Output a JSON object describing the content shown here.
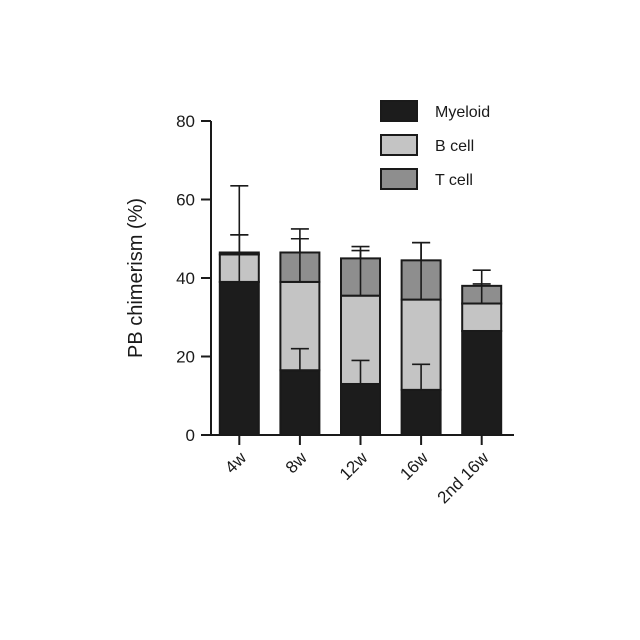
{
  "chart_data": {
    "type": "bar",
    "stacked": true,
    "title": "",
    "xlabel": "",
    "ylabel": "PB chimerism (%)",
    "ylim": [
      0,
      80
    ],
    "yticks": [
      0,
      20,
      40,
      60,
      80
    ],
    "categories": [
      "4w",
      "8w",
      "12w",
      "16w",
      "2nd 16w"
    ],
    "series": [
      {
        "name": "Myeloid",
        "color": "#1c1c1c",
        "values": [
          39,
          16.5,
          13,
          11.5,
          26.5
        ],
        "error": [
          12,
          5.5,
          6,
          6.5,
          null
        ]
      },
      {
        "name": "B cell",
        "color": "#c4c4c4",
        "values": [
          7,
          22.5,
          22.5,
          23,
          7
        ],
        "error": [
          5,
          11,
          11.5,
          14.5,
          5
        ]
      },
      {
        "name": "T cell",
        "color": "#8e8e8e",
        "values": [
          0.5,
          7.5,
          9.5,
          10,
          4.5
        ],
        "error": [
          17,
          6,
          3,
          4.5,
          4
        ]
      }
    ],
    "legend": "top-right",
    "grid": false
  }
}
